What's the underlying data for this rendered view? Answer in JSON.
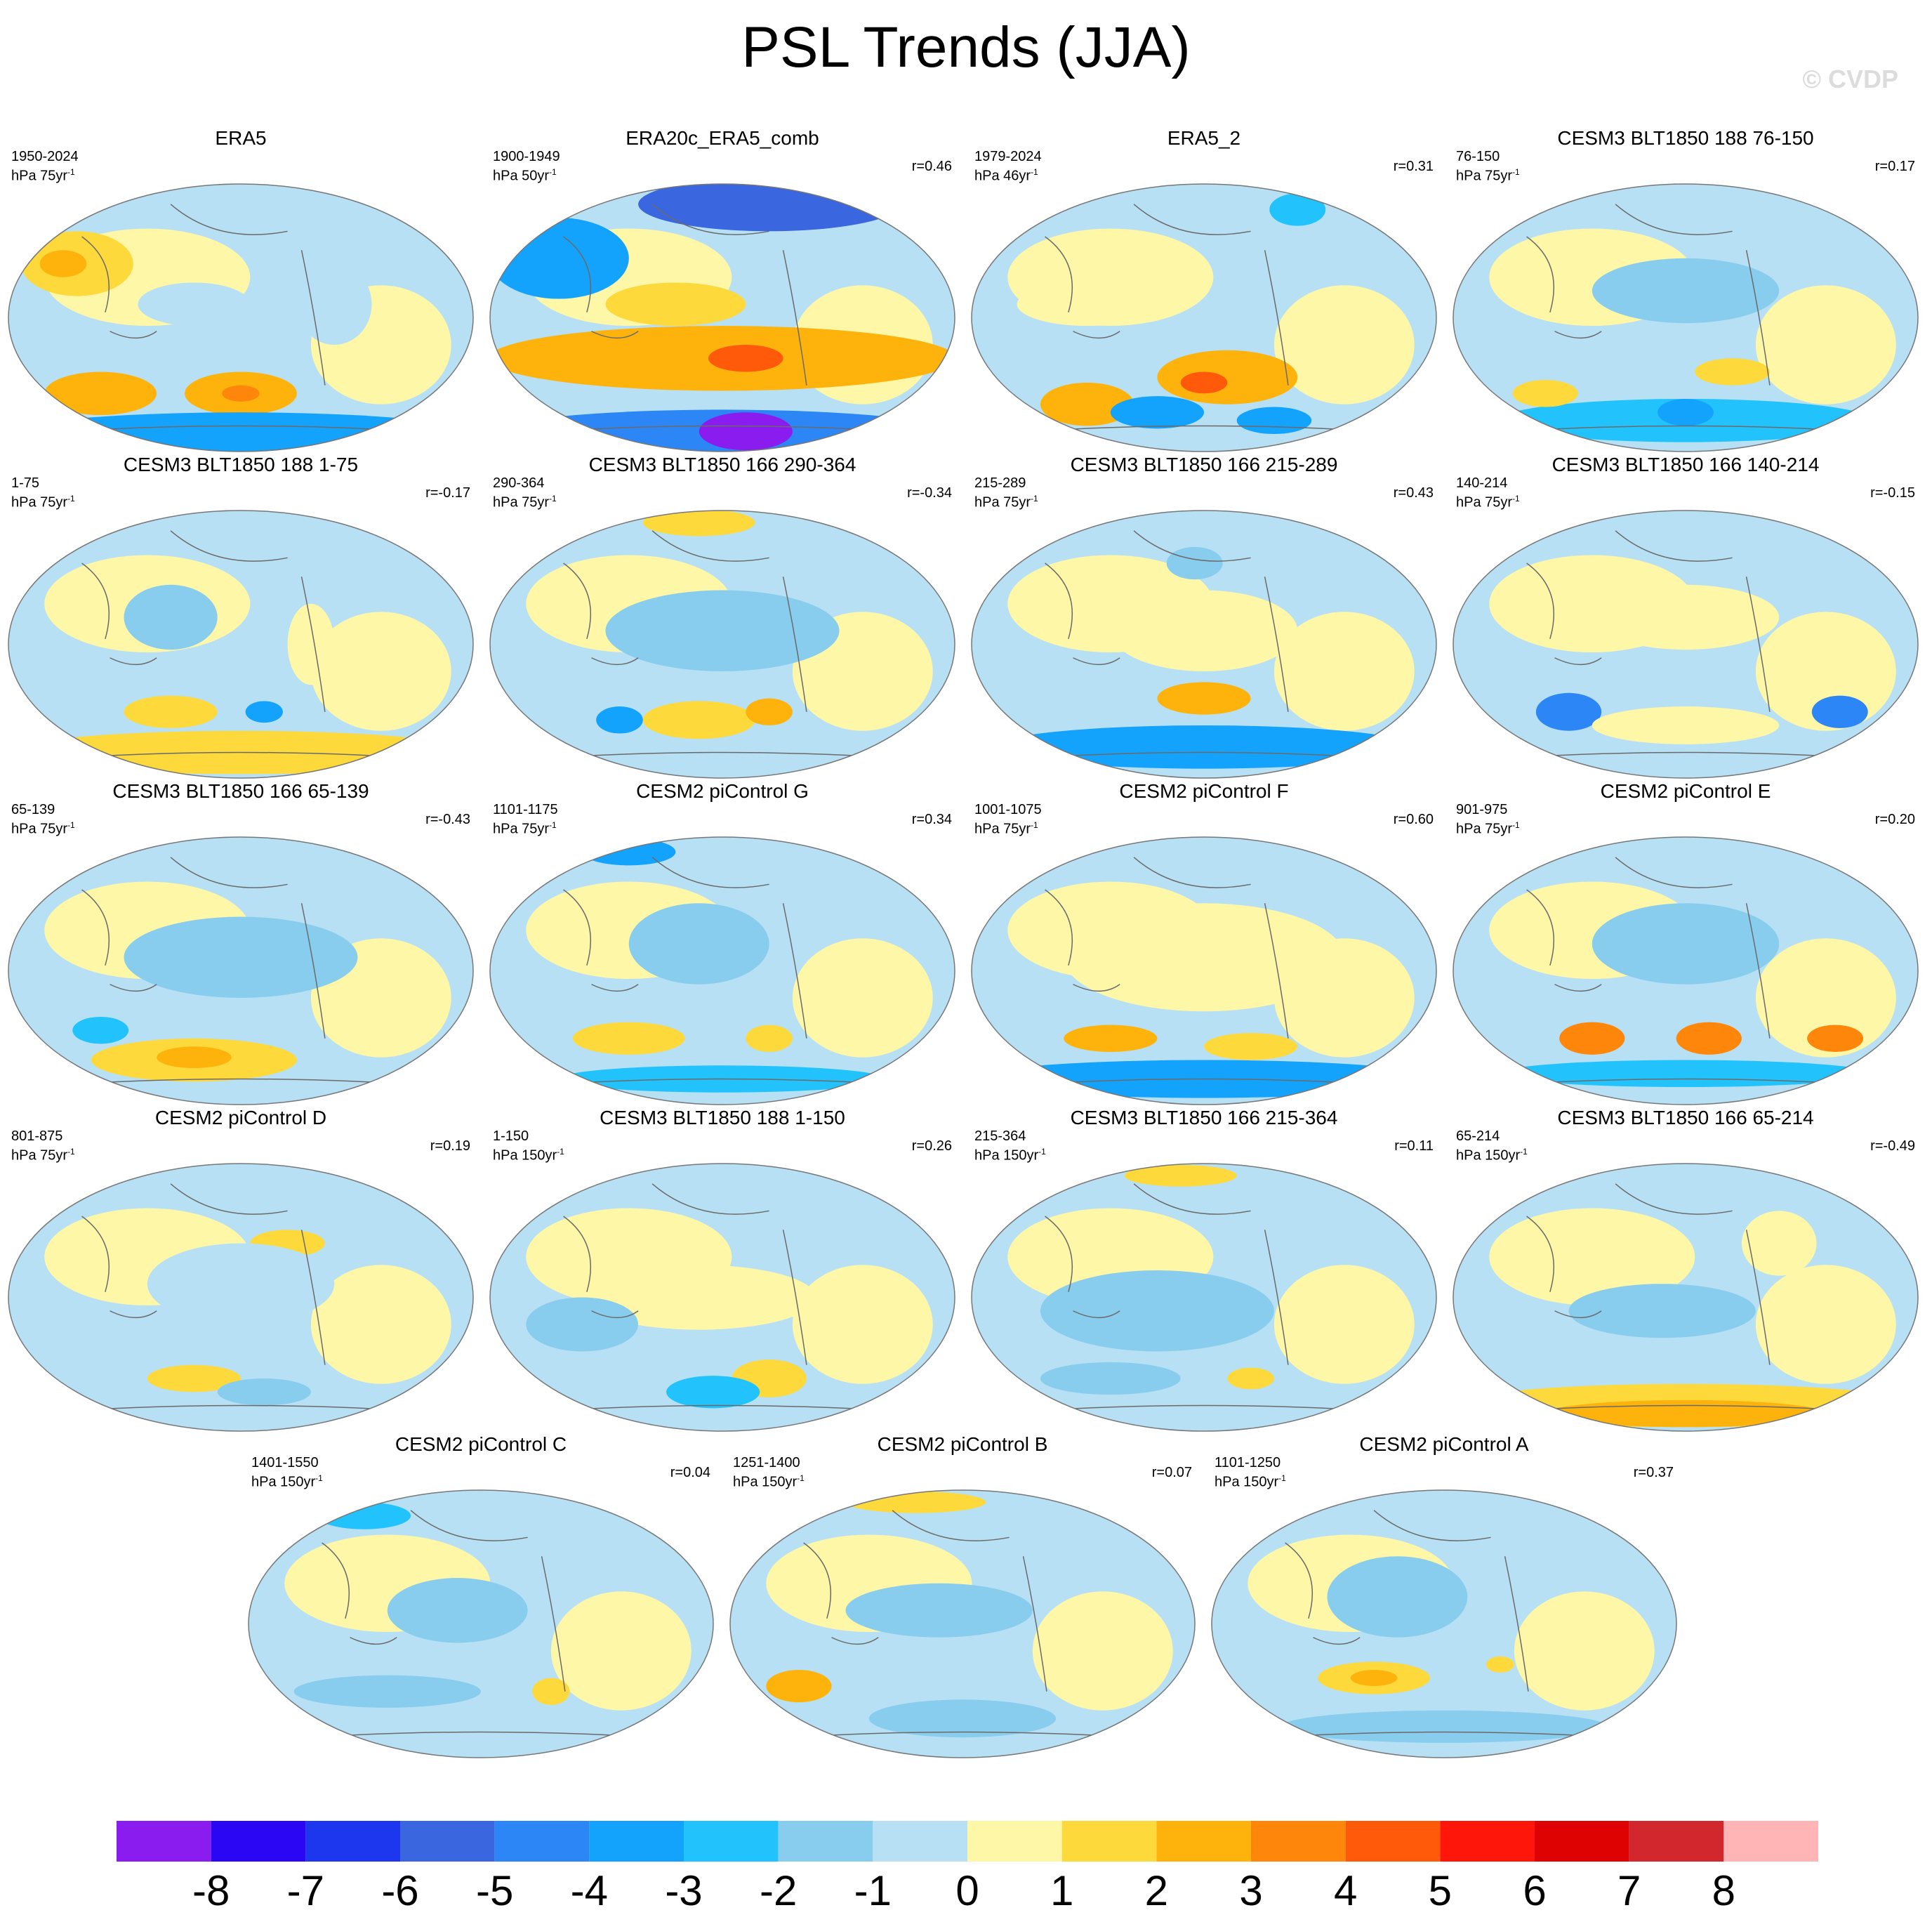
{
  "title": "PSL Trends (JJA)",
  "watermark": "© CVDP",
  "chart_data": {
    "type": "heatmap",
    "projection": "Robinson (Pacific-centered)",
    "colorbar": {
      "ticks": [
        "-8",
        "-7",
        "-6",
        "-5",
        "-4",
        "-3",
        "-2",
        "-1",
        "0",
        "1",
        "2",
        "3",
        "4",
        "5",
        "6",
        "7",
        "8"
      ],
      "colors": [
        "#8a1cf0",
        "#2a06f5",
        "#1d37ef",
        "#3a66e0",
        "#2c86f6",
        "#13a3fc",
        "#22c3fc",
        "#89cdee",
        "#b8e0f4",
        "#fef7a7",
        "#fed93b",
        "#feb30c",
        "#fd860b",
        "#fe5a0a",
        "#fe160b",
        "#df0203",
        "#d3272e",
        "#ffb4b5"
      ]
    },
    "panels": [
      {
        "name": "ERA5",
        "period": "1950-2024",
        "units_base": "hPa 75yr",
        "units_exp": "-1",
        "r": "",
        "blobs": [
          {
            "x": 0.15,
            "y": 0.3,
            "rx": 0.12,
            "ry": 0.12,
            "level": 10
          },
          {
            "x": 0.12,
            "y": 0.3,
            "rx": 0.05,
            "ry": 0.05,
            "level": 11
          },
          {
            "x": 0.2,
            "y": 0.78,
            "rx": 0.12,
            "ry": 0.08,
            "level": 11
          },
          {
            "x": 0.5,
            "y": 0.78,
            "rx": 0.12,
            "ry": 0.08,
            "level": 11
          },
          {
            "x": 0.5,
            "y": 0.78,
            "rx": 0.04,
            "ry": 0.03,
            "level": 12
          },
          {
            "x": 0.5,
            "y": 0.93,
            "rx": 0.5,
            "ry": 0.08,
            "level": 5
          },
          {
            "x": 0.7,
            "y": 0.45,
            "rx": 0.08,
            "ry": 0.15,
            "level": 8
          },
          {
            "x": 0.4,
            "y": 0.45,
            "rx": 0.12,
            "ry": 0.08,
            "level": 8
          }
        ]
      },
      {
        "name": "ERA20c_ERA5_comb",
        "period": "1900-1949",
        "units_base": "hPa 50yr",
        "units_exp": "-1",
        "r": "r=0.46",
        "blobs": [
          {
            "x": 0.6,
            "y": 0.08,
            "rx": 0.28,
            "ry": 0.1,
            "level": 3
          },
          {
            "x": 0.15,
            "y": 0.28,
            "rx": 0.15,
            "ry": 0.15,
            "level": 5
          },
          {
            "x": 0.5,
            "y": 0.65,
            "rx": 0.5,
            "ry": 0.12,
            "level": 11
          },
          {
            "x": 0.55,
            "y": 0.65,
            "rx": 0.08,
            "ry": 0.05,
            "level": 13
          },
          {
            "x": 0.5,
            "y": 0.93,
            "rx": 0.5,
            "ry": 0.09,
            "level": 4
          },
          {
            "x": 0.55,
            "y": 0.92,
            "rx": 0.1,
            "ry": 0.07,
            "level": 0
          },
          {
            "x": 0.4,
            "y": 0.45,
            "rx": 0.15,
            "ry": 0.08,
            "level": 10
          }
        ]
      },
      {
        "name": "ERA5_2",
        "period": "1979-2024",
        "units_base": "hPa 46yr",
        "units_exp": "-1",
        "r": "r=0.31",
        "blobs": [
          {
            "x": 0.55,
            "y": 0.72,
            "rx": 0.15,
            "ry": 0.1,
            "level": 11
          },
          {
            "x": 0.5,
            "y": 0.74,
            "rx": 0.05,
            "ry": 0.04,
            "level": 13
          },
          {
            "x": 0.25,
            "y": 0.82,
            "rx": 0.1,
            "ry": 0.08,
            "level": 11
          },
          {
            "x": 0.4,
            "y": 0.85,
            "rx": 0.1,
            "ry": 0.06,
            "level": 5
          },
          {
            "x": 0.65,
            "y": 0.88,
            "rx": 0.08,
            "ry": 0.05,
            "level": 5
          },
          {
            "x": 0.7,
            "y": 0.1,
            "rx": 0.06,
            "ry": 0.06,
            "level": 6
          },
          {
            "x": 0.25,
            "y": 0.45,
            "rx": 0.15,
            "ry": 0.08,
            "level": 9
          }
        ]
      },
      {
        "name": "CESM3 BLT1850 188 76-150",
        "period": "76-150",
        "units_base": "hPa 75yr",
        "units_exp": "-1",
        "r": "r=0.17",
        "blobs": [
          {
            "x": 0.5,
            "y": 0.88,
            "rx": 0.4,
            "ry": 0.08,
            "level": 6
          },
          {
            "x": 0.5,
            "y": 0.85,
            "rx": 0.06,
            "ry": 0.05,
            "level": 5
          },
          {
            "x": 0.2,
            "y": 0.78,
            "rx": 0.07,
            "ry": 0.05,
            "level": 10
          },
          {
            "x": 0.6,
            "y": 0.7,
            "rx": 0.08,
            "ry": 0.05,
            "level": 10
          },
          {
            "x": 0.5,
            "y": 0.4,
            "rx": 0.2,
            "ry": 0.12,
            "level": 7
          }
        ]
      },
      {
        "name": "CESM3 BLT1850 188 1-75",
        "period": "1-75",
        "units_base": "hPa 75yr",
        "units_exp": "-1",
        "r": "r=-0.17",
        "blobs": [
          {
            "x": 0.5,
            "y": 0.9,
            "rx": 0.5,
            "ry": 0.08,
            "level": 10
          },
          {
            "x": 0.35,
            "y": 0.75,
            "rx": 0.1,
            "ry": 0.06,
            "level": 10
          },
          {
            "x": 0.55,
            "y": 0.75,
            "rx": 0.04,
            "ry": 0.04,
            "level": 5
          },
          {
            "x": 0.35,
            "y": 0.4,
            "rx": 0.1,
            "ry": 0.12,
            "level": 7
          },
          {
            "x": 0.65,
            "y": 0.5,
            "rx": 0.05,
            "ry": 0.15,
            "level": 9
          }
        ]
      },
      {
        "name": "CESM3 BLT1850 166 290-364",
        "period": "290-364",
        "units_base": "hPa 75yr",
        "units_exp": "-1",
        "r": "r=-0.34",
        "blobs": [
          {
            "x": 0.45,
            "y": 0.78,
            "rx": 0.12,
            "ry": 0.07,
            "level": 10
          },
          {
            "x": 0.6,
            "y": 0.75,
            "rx": 0.05,
            "ry": 0.05,
            "level": 11
          },
          {
            "x": 0.28,
            "y": 0.78,
            "rx": 0.05,
            "ry": 0.05,
            "level": 5
          },
          {
            "x": 0.45,
            "y": 0.05,
            "rx": 0.12,
            "ry": 0.05,
            "level": 10
          },
          {
            "x": 0.5,
            "y": 0.45,
            "rx": 0.25,
            "ry": 0.15,
            "level": 7
          }
        ]
      },
      {
        "name": "CESM3 BLT1850 166 215-289",
        "period": "215-289",
        "units_base": "hPa 75yr",
        "units_exp": "-1",
        "r": "r=0.43",
        "blobs": [
          {
            "x": 0.5,
            "y": 0.88,
            "rx": 0.45,
            "ry": 0.08,
            "level": 5
          },
          {
            "x": 0.5,
            "y": 0.7,
            "rx": 0.1,
            "ry": 0.06,
            "level": 11
          },
          {
            "x": 0.5,
            "y": 0.45,
            "rx": 0.2,
            "ry": 0.15,
            "level": 9
          },
          {
            "x": 0.48,
            "y": 0.2,
            "rx": 0.06,
            "ry": 0.06,
            "level": 7
          }
        ]
      },
      {
        "name": "CESM3 BLT1850 166 140-214",
        "period": "140-214",
        "units_base": "hPa 75yr",
        "units_exp": "-1",
        "r": "r=-0.15",
        "blobs": [
          {
            "x": 0.25,
            "y": 0.75,
            "rx": 0.07,
            "ry": 0.07,
            "level": 4
          },
          {
            "x": 0.83,
            "y": 0.75,
            "rx": 0.06,
            "ry": 0.06,
            "level": 4
          },
          {
            "x": 0.5,
            "y": 0.8,
            "rx": 0.2,
            "ry": 0.07,
            "level": 9
          },
          {
            "x": 0.5,
            "y": 0.4,
            "rx": 0.2,
            "ry": 0.12,
            "level": 9
          }
        ]
      },
      {
        "name": "CESM3 BLT1850 166 65-139",
        "period": "65-139",
        "units_base": "hPa 75yr",
        "units_exp": "-1",
        "r": "r=-0.43",
        "blobs": [
          {
            "x": 0.4,
            "y": 0.83,
            "rx": 0.22,
            "ry": 0.08,
            "level": 10
          },
          {
            "x": 0.4,
            "y": 0.82,
            "rx": 0.08,
            "ry": 0.04,
            "level": 11
          },
          {
            "x": 0.2,
            "y": 0.72,
            "rx": 0.06,
            "ry": 0.05,
            "level": 6
          },
          {
            "x": 0.5,
            "y": 0.45,
            "rx": 0.25,
            "ry": 0.15,
            "level": 7
          }
        ]
      },
      {
        "name": "CESM2 piControl G",
        "period": "1101-1175",
        "units_base": "hPa 75yr",
        "units_exp": "-1",
        "r": "r=0.34",
        "blobs": [
          {
            "x": 0.3,
            "y": 0.75,
            "rx": 0.12,
            "ry": 0.06,
            "level": 10
          },
          {
            "x": 0.6,
            "y": 0.75,
            "rx": 0.05,
            "ry": 0.05,
            "level": 10
          },
          {
            "x": 0.5,
            "y": 0.9,
            "rx": 0.35,
            "ry": 0.05,
            "level": 6
          },
          {
            "x": 0.3,
            "y": 0.06,
            "rx": 0.1,
            "ry": 0.05,
            "level": 5
          },
          {
            "x": 0.45,
            "y": 0.4,
            "rx": 0.15,
            "ry": 0.15,
            "level": 7
          }
        ]
      },
      {
        "name": "CESM2 piControl F",
        "period": "1001-1075",
        "units_base": "hPa 75yr",
        "units_exp": "-1",
        "r": "r=0.60",
        "blobs": [
          {
            "x": 0.5,
            "y": 0.9,
            "rx": 0.5,
            "ry": 0.07,
            "level": 5
          },
          {
            "x": 0.3,
            "y": 0.75,
            "rx": 0.1,
            "ry": 0.05,
            "level": 11
          },
          {
            "x": 0.6,
            "y": 0.78,
            "rx": 0.1,
            "ry": 0.05,
            "level": 10
          },
          {
            "x": 0.5,
            "y": 0.45,
            "rx": 0.3,
            "ry": 0.2,
            "level": 9
          }
        ]
      },
      {
        "name": "CESM2 piControl E",
        "period": "901-975",
        "units_base": "hPa 75yr",
        "units_exp": "-1",
        "r": "r=0.20",
        "blobs": [
          {
            "x": 0.3,
            "y": 0.75,
            "rx": 0.07,
            "ry": 0.06,
            "level": 12
          },
          {
            "x": 0.55,
            "y": 0.75,
            "rx": 0.07,
            "ry": 0.06,
            "level": 12
          },
          {
            "x": 0.82,
            "y": 0.75,
            "rx": 0.06,
            "ry": 0.05,
            "level": 12
          },
          {
            "x": 0.5,
            "y": 0.88,
            "rx": 0.4,
            "ry": 0.05,
            "level": 6
          },
          {
            "x": 0.5,
            "y": 0.4,
            "rx": 0.2,
            "ry": 0.15,
            "level": 7
          }
        ]
      },
      {
        "name": "CESM2 piControl D",
        "period": "801-875",
        "units_base": "hPa 75yr",
        "units_exp": "-1",
        "r": "r=0.19",
        "blobs": [
          {
            "x": 0.4,
            "y": 0.8,
            "rx": 0.1,
            "ry": 0.05,
            "level": 10
          },
          {
            "x": 0.55,
            "y": 0.85,
            "rx": 0.1,
            "ry": 0.05,
            "level": 7
          },
          {
            "x": 0.6,
            "y": 0.3,
            "rx": 0.08,
            "ry": 0.05,
            "level": 10
          },
          {
            "x": 0.5,
            "y": 0.45,
            "rx": 0.2,
            "ry": 0.15,
            "level": 8
          }
        ]
      },
      {
        "name": "CESM3 BLT1850 188 1-150",
        "period": "1-150",
        "units_base": "hPa 150yr",
        "units_exp": "-1",
        "r": "r=0.26",
        "blobs": [
          {
            "x": 0.6,
            "y": 0.8,
            "rx": 0.08,
            "ry": 0.07,
            "level": 10
          },
          {
            "x": 0.48,
            "y": 0.85,
            "rx": 0.1,
            "ry": 0.06,
            "level": 6
          },
          {
            "x": 0.45,
            "y": 0.5,
            "rx": 0.25,
            "ry": 0.12,
            "level": 9
          },
          {
            "x": 0.2,
            "y": 0.6,
            "rx": 0.12,
            "ry": 0.1,
            "level": 7
          }
        ]
      },
      {
        "name": "CESM3 BLT1850 166 215-364",
        "period": "215-364",
        "units_base": "hPa 150yr",
        "units_exp": "-1",
        "r": "r=0.11",
        "blobs": [
          {
            "x": 0.6,
            "y": 0.8,
            "rx": 0.05,
            "ry": 0.04,
            "level": 10
          },
          {
            "x": 0.45,
            "y": 0.05,
            "rx": 0.12,
            "ry": 0.04,
            "level": 10
          },
          {
            "x": 0.4,
            "y": 0.55,
            "rx": 0.25,
            "ry": 0.15,
            "level": 7
          },
          {
            "x": 0.3,
            "y": 0.8,
            "rx": 0.15,
            "ry": 0.06,
            "level": 7
          }
        ]
      },
      {
        "name": "CESM3 BLT1850 166 65-214",
        "period": "65-214",
        "units_base": "hPa 150yr",
        "units_exp": "-1",
        "r": "r=-0.49",
        "blobs": [
          {
            "x": 0.5,
            "y": 0.9,
            "rx": 0.5,
            "ry": 0.08,
            "level": 10
          },
          {
            "x": 0.5,
            "y": 0.93,
            "rx": 0.3,
            "ry": 0.05,
            "level": 11
          },
          {
            "x": 0.45,
            "y": 0.55,
            "rx": 0.2,
            "ry": 0.1,
            "level": 7
          },
          {
            "x": 0.7,
            "y": 0.3,
            "rx": 0.08,
            "ry": 0.12,
            "level": 9
          }
        ]
      },
      {
        "name": "CESM2 piControl C",
        "period": "1401-1550",
        "units_base": "hPa 150yr",
        "units_exp": "-1",
        "r": "r=0.04",
        "blobs": [
          {
            "x": 0.65,
            "y": 0.75,
            "rx": 0.04,
            "ry": 0.05,
            "level": 10
          },
          {
            "x": 0.3,
            "y": 0.75,
            "rx": 0.2,
            "ry": 0.06,
            "level": 7
          },
          {
            "x": 0.45,
            "y": 0.45,
            "rx": 0.15,
            "ry": 0.12,
            "level": 7
          },
          {
            "x": 0.25,
            "y": 0.1,
            "rx": 0.1,
            "ry": 0.05,
            "level": 6
          }
        ]
      },
      {
        "name": "CESM2 piControl B",
        "period": "1251-1400",
        "units_base": "hPa 150yr",
        "units_exp": "-1",
        "r": "r=0.07",
        "blobs": [
          {
            "x": 0.15,
            "y": 0.73,
            "rx": 0.07,
            "ry": 0.06,
            "level": 11
          },
          {
            "x": 0.4,
            "y": 0.05,
            "rx": 0.15,
            "ry": 0.04,
            "level": 10
          },
          {
            "x": 0.5,
            "y": 0.85,
            "rx": 0.2,
            "ry": 0.07,
            "level": 7
          },
          {
            "x": 0.45,
            "y": 0.45,
            "rx": 0.2,
            "ry": 0.1,
            "level": 7
          }
        ]
      },
      {
        "name": "CESM2 piControl A",
        "period": "1101-1250",
        "units_base": "hPa 150yr",
        "units_exp": "-1",
        "r": "r=0.37",
        "blobs": [
          {
            "x": 0.35,
            "y": 0.7,
            "rx": 0.12,
            "ry": 0.06,
            "level": 10
          },
          {
            "x": 0.35,
            "y": 0.7,
            "rx": 0.05,
            "ry": 0.03,
            "level": 11
          },
          {
            "x": 0.5,
            "y": 0.88,
            "rx": 0.35,
            "ry": 0.06,
            "level": 7
          },
          {
            "x": 0.4,
            "y": 0.4,
            "rx": 0.15,
            "ry": 0.15,
            "level": 7
          },
          {
            "x": 0.62,
            "y": 0.65,
            "rx": 0.03,
            "ry": 0.03,
            "level": 10
          }
        ]
      }
    ]
  }
}
